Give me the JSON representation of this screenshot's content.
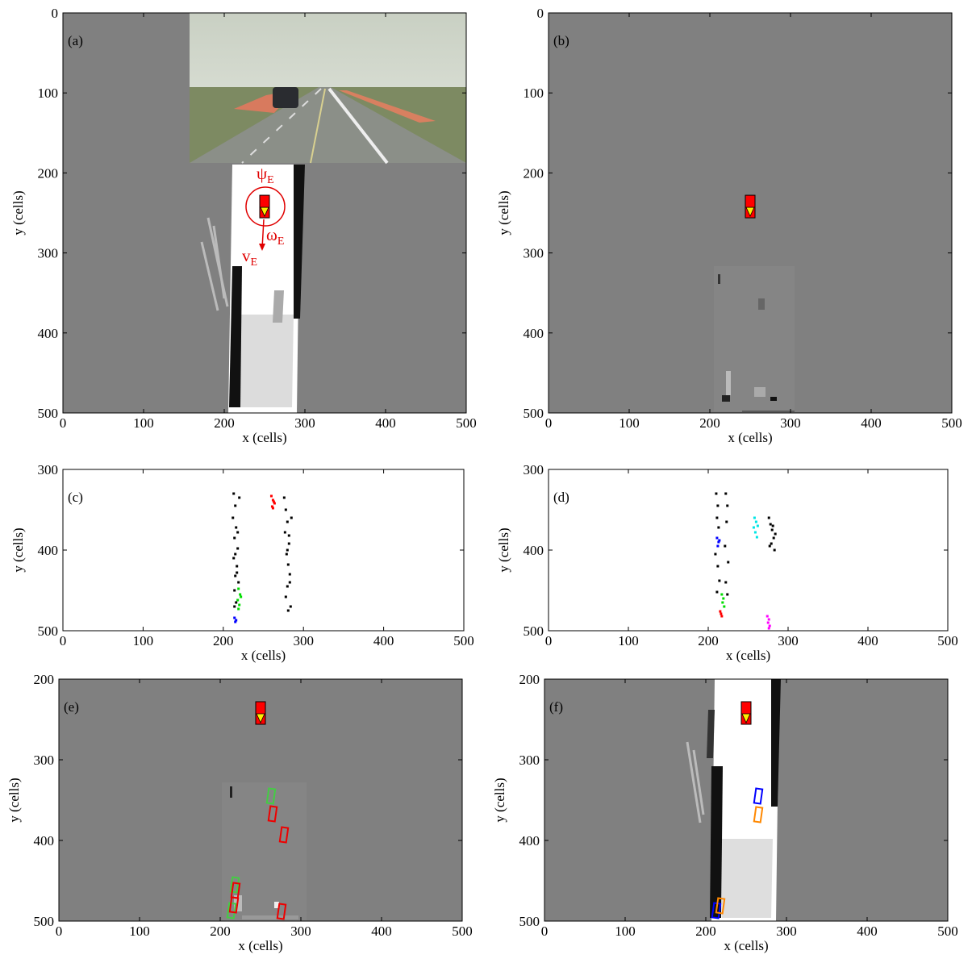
{
  "chart_data": [
    {
      "type": "occupancy-grid",
      "panel_label": "(a)",
      "xlabel": "x (cells)",
      "ylabel": "y (cells)",
      "xlim": [
        0,
        500
      ],
      "ylim": [
        0,
        500
      ],
      "y_reversed": true,
      "xticks": [
        0,
        100,
        200,
        300,
        400,
        500
      ],
      "yticks": [
        0,
        100,
        200,
        300,
        400,
        500
      ],
      "annotations": [
        {
          "symbol": "ψ",
          "subscript": "E"
        },
        {
          "symbol": "ω",
          "subscript": "E"
        },
        {
          "symbol": "v",
          "subscript": "E"
        }
      ],
      "series": [
        {
          "marker": "vehicle",
          "color": "#ff0000",
          "x": [
            250
          ],
          "y": [
            242
          ]
        }
      ]
    },
    {
      "type": "occupancy-grid",
      "panel_label": "(b)",
      "xlabel": "x (cells)",
      "ylabel": "y (cells)",
      "xlim": [
        0,
        500
      ],
      "ylim": [
        0,
        500
      ],
      "y_reversed": true,
      "xticks": [
        0,
        100,
        200,
        300,
        400,
        500
      ],
      "yticks": [
        0,
        100,
        200,
        300,
        400,
        500
      ],
      "series": [
        {
          "marker": "vehicle",
          "color": "#ff0000",
          "x": [
            250
          ],
          "y": [
            242
          ]
        }
      ]
    },
    {
      "type": "scatter",
      "panel_label": "(c)",
      "xlabel": "x (cells)",
      "ylabel": "y (cells)",
      "xlim": [
        0,
        500
      ],
      "ylim": [
        300,
        500
      ],
      "y_reversed": true,
      "xticks": [
        0,
        100,
        200,
        300,
        400,
        500
      ],
      "yticks": [
        300,
        400,
        500
      ],
      "series": [
        {
          "marker": "point",
          "color": "#000000",
          "x": [
            213,
            215,
            212,
            216,
            214,
            218,
            213,
            217,
            215,
            219,
            214,
            216,
            220,
            218,
            215,
            217,
            214,
            276,
            278,
            280,
            277,
            282,
            279,
            281,
            283,
            280,
            278,
            284,
            282,
            280,
            285,
            283,
            281
          ],
          "y": [
            330,
            345,
            360,
            372,
            385,
            398,
            410,
            420,
            432,
            440,
            450,
            465,
            335,
            378,
            405,
            428,
            470,
            335,
            350,
            365,
            378,
            392,
            405,
            418,
            430,
            445,
            458,
            470,
            382,
            400,
            360,
            440,
            475
          ]
        },
        {
          "marker": "point",
          "color": "#ff0000",
          "x": [
            260,
            262,
            264,
            261,
            263,
            262
          ],
          "y": [
            333,
            338,
            342,
            346,
            340,
            348
          ]
        },
        {
          "marker": "point",
          "color": "#00dd00",
          "x": [
            219,
            221,
            218,
            220,
            222,
            219
          ],
          "y": [
            448,
            455,
            462,
            468,
            458,
            473
          ]
        },
        {
          "marker": "point",
          "color": "#0000ff",
          "x": [
            214,
            216,
            215
          ],
          "y": [
            484,
            487,
            489
          ]
        }
      ]
    },
    {
      "type": "scatter",
      "panel_label": "(d)",
      "xlabel": "x (cells)",
      "ylabel": "y (cells)",
      "xlim": [
        0,
        500
      ],
      "ylim": [
        300,
        500
      ],
      "y_reversed": true,
      "xticks": [
        0,
        100,
        200,
        300,
        400,
        500
      ],
      "yticks": [
        300,
        400,
        500
      ],
      "series": [
        {
          "marker": "point",
          "color": "#000000",
          "x": [
            210,
            212,
            211,
            213,
            209,
            212,
            214,
            211,
            222,
            224,
            223,
            221,
            225,
            222,
            224,
            276,
            278,
            280,
            282,
            279,
            284,
            277,
            281,
            283
          ],
          "y": [
            330,
            345,
            360,
            372,
            405,
            420,
            438,
            452,
            330,
            345,
            365,
            395,
            415,
            440,
            455,
            360,
            368,
            375,
            385,
            392,
            380,
            395,
            370,
            400
          ]
        },
        {
          "marker": "point",
          "color": "#00e5e5",
          "x": [
            258,
            260,
            262,
            259,
            261,
            257
          ],
          "y": [
            360,
            365,
            370,
            378,
            384,
            372
          ]
        },
        {
          "marker": "point",
          "color": "#0000ff",
          "x": [
            211,
            213,
            212,
            214
          ],
          "y": [
            385,
            390,
            395,
            388
          ]
        },
        {
          "marker": "point",
          "color": "#00dd00",
          "x": [
            217,
            219,
            218,
            220
          ],
          "y": [
            455,
            460,
            465,
            470
          ]
        },
        {
          "marker": "point",
          "color": "#ff0000",
          "x": [
            215,
            216,
            217
          ],
          "y": [
            476,
            479,
            482
          ]
        },
        {
          "marker": "point",
          "color": "#ff00ff",
          "x": [
            274,
            276,
            275,
            277,
            276
          ],
          "y": [
            482,
            486,
            490,
            494,
            497
          ]
        }
      ]
    },
    {
      "type": "occupancy-grid",
      "panel_label": "(e)",
      "xlabel": "x (cells)",
      "ylabel": "y (cells)",
      "xlim": [
        0,
        500
      ],
      "ylim": [
        200,
        500
      ],
      "y_reversed": true,
      "xticks": [
        0,
        100,
        200,
        300,
        400,
        500
      ],
      "yticks": [
        200,
        300,
        400,
        500
      ],
      "series": [
        {
          "marker": "vehicle",
          "color": "#ff0000",
          "x": [
            250
          ],
          "y": [
            242
          ]
        },
        {
          "marker": "box",
          "color": "#44cc44",
          "x": [
            263,
            218,
            214
          ],
          "y": [
            345,
            455,
            487
          ]
        },
        {
          "marker": "box",
          "color": "#ee0000",
          "x": [
            265,
            279,
            219,
            217,
            276
          ],
          "y": [
            367,
            393,
            462,
            480,
            488
          ]
        }
      ]
    },
    {
      "type": "occupancy-grid",
      "panel_label": "(f)",
      "xlabel": "x (cells)",
      "ylabel": "y (cells)",
      "xlim": [
        0,
        500
      ],
      "ylim": [
        200,
        500
      ],
      "y_reversed": true,
      "xticks": [
        0,
        100,
        200,
        300,
        400,
        500
      ],
      "yticks": [
        200,
        300,
        400,
        500
      ],
      "series": [
        {
          "marker": "vehicle",
          "color": "#ff0000",
          "x": [
            250
          ],
          "y": [
            242
          ]
        },
        {
          "marker": "box",
          "color": "#0000ff",
          "x": [
            265,
            213
          ],
          "y": [
            345,
            487
          ]
        },
        {
          "marker": "box",
          "color": "#ff8800",
          "x": [
            265,
            218
          ],
          "y": [
            368,
            481
          ]
        }
      ]
    }
  ]
}
